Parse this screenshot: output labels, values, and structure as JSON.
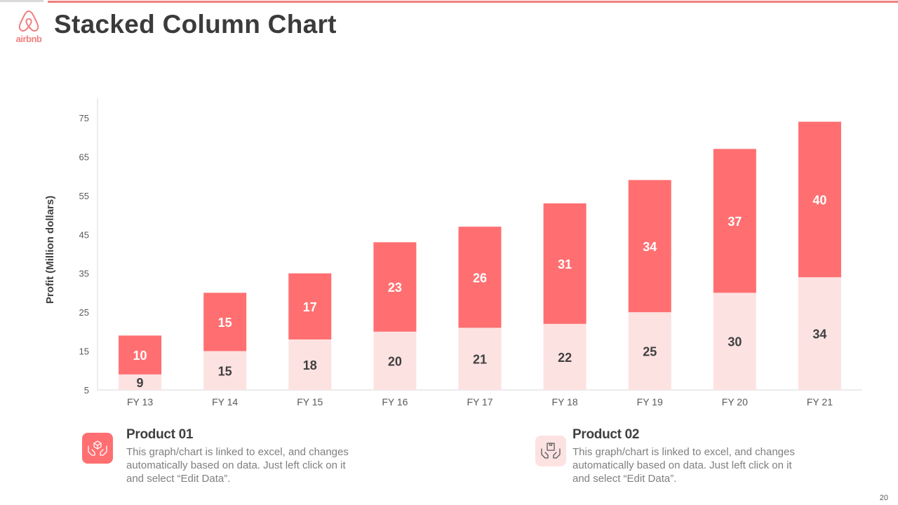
{
  "slide": {
    "title": "Stacked Column Chart",
    "logo_text": "airbnb",
    "page_number": "20"
  },
  "colors": {
    "accent": "#f07f7f",
    "product_01": "#ff6f71",
    "product_02": "#fde2e2",
    "label_on_dark": "#ffffff",
    "label_on_light": "#404040"
  },
  "chart_data": {
    "type": "bar",
    "stacked": true,
    "title": "",
    "xlabel": "",
    "ylabel": "Profit  (Million dollars)",
    "categories": [
      "FY 13",
      "FY 14",
      "FY 15",
      "FY 16",
      "FY 17",
      "FY 18",
      "FY 19",
      "FY 20",
      "FY 21"
    ],
    "ylim": [
      5,
      75
    ],
    "yticks": [
      5,
      15,
      25,
      35,
      45,
      55,
      65,
      75
    ],
    "grid": false,
    "series": [
      {
        "name": "Product 02",
        "values": [
          9,
          15,
          18,
          20,
          21,
          22,
          25,
          30,
          34
        ]
      },
      {
        "name": "Product 01",
        "values": [
          10,
          15,
          17,
          23,
          26,
          31,
          34,
          37,
          40
        ]
      }
    ]
  },
  "legend": [
    {
      "name": "Product 01",
      "icon": "hands-box-icon",
      "desc": "This graph/chart is linked to excel, and changes automatically based on data. Just left click on it and select “Edit Data”."
    },
    {
      "name": "Product 02",
      "icon": "hands-box-icon",
      "desc": "This graph/chart is linked to excel, and changes automatically based on data. Just left click on it and select “Edit Data”."
    }
  ]
}
